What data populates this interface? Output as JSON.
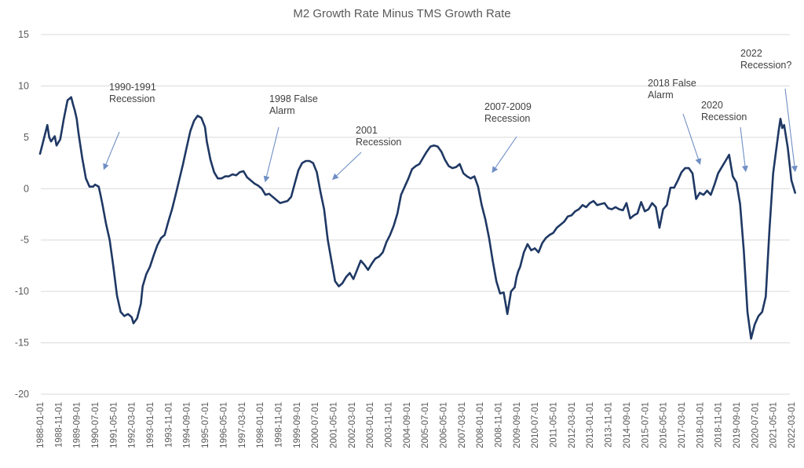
{
  "chart_data": {
    "type": "line",
    "title": "M2 Growth Rate Minus TMS Growth Rate",
    "xlabel": "",
    "ylabel": "",
    "ylim": [
      -20,
      15
    ],
    "yticks": [
      15,
      10,
      5,
      0,
      -5,
      -10,
      -15,
      -20
    ],
    "ytick_labels": [
      "15",
      "10",
      "5",
      "0",
      "-5",
      "-10",
      "-15",
      "-20"
    ],
    "grid": true,
    "legend": "none",
    "x_start": "1988-01",
    "x_end": "2022-05",
    "xtick_labels": [
      "1988-01-01",
      "1988-11-01",
      "1989-09-01",
      "1990-07-01",
      "1991-05-01",
      "1992-03-01",
      "1993-01-01",
      "1993-11-01",
      "1994-09-01",
      "1995-07-01",
      "1996-05-01",
      "1997-03-01",
      "1998-01-01",
      "1998-11-01",
      "1999-09-01",
      "2000-07-01",
      "2001-05-01",
      "2002-03-01",
      "2003-01-01",
      "2003-11-01",
      "2004-09-01",
      "2005-07-01",
      "2006-05-01",
      "2007-03-01",
      "2008-01-01",
      "2008-11-01",
      "2009-09-01",
      "2010-07-01",
      "2011-05-01",
      "2012-03-01",
      "2013-01-01",
      "2013-11-01",
      "2014-09-01",
      "2015-07-01",
      "2016-05-01",
      "2017-03-01",
      "2018-01-01",
      "2018-11-01",
      "2019-09-01",
      "2020-07-01",
      "2021-05-01",
      "2022-03-01"
    ],
    "series": [
      {
        "name": "M2 Growth Rate Minus TMS Growth Rate",
        "color": "#1f3864",
        "x": [
          "1988-01",
          "1988-03",
          "1988-05",
          "1988-06",
          "1988-07",
          "1988-09",
          "1988-10",
          "1988-12",
          "1989-02",
          "1989-04",
          "1989-06",
          "1989-07",
          "1989-08",
          "1989-09",
          "1989-10",
          "1989-12",
          "1990-02",
          "1990-04",
          "1990-06",
          "1990-07",
          "1990-09",
          "1990-10",
          "1990-11",
          "1991-01",
          "1991-03",
          "1991-05",
          "1991-07",
          "1991-09",
          "1991-11",
          "1992-01",
          "1992-03",
          "1992-04",
          "1992-06",
          "1992-08",
          "1992-09",
          "1992-11",
          "1993-01",
          "1993-03",
          "1993-05",
          "1993-07",
          "1993-09",
          "1993-11",
          "1994-01",
          "1994-03",
          "1994-05",
          "1994-07",
          "1994-09",
          "1994-11",
          "1995-01",
          "1995-03",
          "1995-05",
          "1995-07",
          "1995-08",
          "1995-10",
          "1995-12",
          "1996-02",
          "1996-04",
          "1996-06",
          "1996-08",
          "1996-10",
          "1996-12",
          "1997-02",
          "1997-04",
          "1997-06",
          "1997-08",
          "1997-10",
          "1997-12",
          "1998-02",
          "1998-04",
          "1998-06",
          "1998-08",
          "1998-10",
          "1998-12",
          "1999-02",
          "1999-04",
          "1999-06",
          "1999-08",
          "1999-10",
          "1999-12",
          "2000-02",
          "2000-04",
          "2000-06",
          "2000-08",
          "2000-10",
          "2000-12",
          "2001-02",
          "2001-04",
          "2001-06",
          "2001-08",
          "2001-10",
          "2001-12",
          "2002-02",
          "2002-04",
          "2002-06",
          "2002-08",
          "2002-10",
          "2002-12",
          "2003-02",
          "2003-04",
          "2003-06",
          "2003-08",
          "2003-10",
          "2003-12",
          "2004-02",
          "2004-04",
          "2004-06",
          "2004-08",
          "2004-10",
          "2004-12",
          "2005-02",
          "2005-04",
          "2005-06",
          "2005-08",
          "2005-10",
          "2005-12",
          "2006-02",
          "2006-04",
          "2006-06",
          "2006-08",
          "2006-10",
          "2006-12",
          "2007-02",
          "2007-04",
          "2007-06",
          "2007-08",
          "2007-10",
          "2007-12",
          "2008-02",
          "2008-04",
          "2008-06",
          "2008-08",
          "2008-10",
          "2008-12",
          "2009-02",
          "2009-04",
          "2009-06",
          "2009-08",
          "2009-09",
          "2009-10",
          "2009-11",
          "2010-01",
          "2010-03",
          "2010-05",
          "2010-07",
          "2010-09",
          "2010-11",
          "2011-01",
          "2011-03",
          "2011-05",
          "2011-07",
          "2011-09",
          "2011-11",
          "2012-01",
          "2012-03",
          "2012-05",
          "2012-07",
          "2012-09",
          "2012-11",
          "2013-01",
          "2013-03",
          "2013-05",
          "2013-07",
          "2013-09",
          "2013-11",
          "2014-01",
          "2014-03",
          "2014-05",
          "2014-07",
          "2014-09",
          "2014-11",
          "2015-01",
          "2015-03",
          "2015-05",
          "2015-07",
          "2015-09",
          "2015-11",
          "2016-01",
          "2016-03",
          "2016-05",
          "2016-07",
          "2016-09",
          "2016-11",
          "2017-01",
          "2017-03",
          "2017-05",
          "2017-07",
          "2017-09",
          "2017-11",
          "2018-01",
          "2018-03",
          "2018-05",
          "2018-07",
          "2018-09",
          "2018-11",
          "2019-01",
          "2019-03",
          "2019-05",
          "2019-07",
          "2019-09",
          "2019-11",
          "2020-01",
          "2020-03",
          "2020-05",
          "2020-07",
          "2020-09",
          "2020-11",
          "2021-01",
          "2021-03",
          "2021-05",
          "2021-07",
          "2021-08",
          "2021-09",
          "2021-10",
          "2021-11",
          "2022-01",
          "2022-03",
          "2022-05"
        ],
        "values": [
          3.4,
          4.8,
          6.2,
          5.0,
          4.6,
          5.1,
          4.2,
          4.8,
          6.8,
          8.6,
          8.9,
          8.2,
          7.6,
          6.8,
          5.4,
          3.0,
          1.0,
          0.2,
          0.2,
          0.4,
          0.2,
          -0.6,
          -1.5,
          -3.4,
          -5.0,
          -7.6,
          -10.4,
          -12.0,
          -12.4,
          -12.2,
          -12.5,
          -13.1,
          -12.6,
          -11.2,
          -9.5,
          -8.3,
          -7.6,
          -6.5,
          -5.5,
          -4.8,
          -4.5,
          -3.2,
          -2.0,
          -0.6,
          0.9,
          2.4,
          4.0,
          5.6,
          6.6,
          7.1,
          6.9,
          6.0,
          4.6,
          2.8,
          1.6,
          1.0,
          1.0,
          1.2,
          1.2,
          1.4,
          1.3,
          1.6,
          1.7,
          1.1,
          0.8,
          0.5,
          0.3,
          0.0,
          -0.6,
          -0.5,
          -0.8,
          -1.1,
          -1.4,
          -1.3,
          -1.2,
          -0.8,
          0.5,
          1.8,
          2.5,
          2.7,
          2.7,
          2.5,
          1.6,
          -0.3,
          -2.0,
          -5.0,
          -7.0,
          -9.0,
          -9.5,
          -9.2,
          -8.6,
          -8.2,
          -8.8,
          -7.9,
          -7.0,
          -7.4,
          -7.9,
          -7.3,
          -6.8,
          -6.6,
          -6.2,
          -5.2,
          -4.5,
          -3.6,
          -2.4,
          -0.6,
          0.2,
          1.0,
          1.9,
          2.2,
          2.4,
          3.0,
          3.6,
          4.1,
          4.2,
          4.1,
          3.6,
          2.8,
          2.2,
          2.0,
          2.1,
          2.4,
          1.5,
          1.2,
          1.0,
          1.2,
          0.2,
          -1.6,
          -3.0,
          -4.8,
          -7.0,
          -9.0,
          -10.2,
          -10.1,
          -12.2,
          -10.0,
          -9.6,
          -8.6,
          -8.0,
          -7.6,
          -6.2,
          -5.4,
          -6.0,
          -5.8,
          -6.2,
          -5.3,
          -4.8,
          -4.5,
          -4.3,
          -3.8,
          -3.5,
          -3.2,
          -2.7,
          -2.6,
          -2.2,
          -2.0,
          -1.6,
          -1.8,
          -1.4,
          -1.2,
          -1.6,
          -1.5,
          -1.4,
          -1.9,
          -2.0,
          -1.8,
          -2.0,
          -2.1,
          -1.4,
          -2.9,
          -2.6,
          -2.4,
          -1.3,
          -2.2,
          -2.0,
          -1.4,
          -1.8,
          -3.8,
          -2.0,
          -1.6,
          0.1,
          0.1,
          0.8,
          1.6,
          2.0,
          2.0,
          1.5,
          -1.0,
          -0.4,
          -0.6,
          -0.2,
          -0.6,
          0.4,
          1.5,
          2.1,
          2.7,
          3.3,
          1.2,
          0.6,
          -1.5,
          -6.0,
          -12.0,
          -14.6,
          -13.2,
          -12.4,
          -12.0,
          -10.5,
          -4.0,
          1.5,
          4.2,
          5.6,
          6.8,
          5.9,
          6.2,
          4.0,
          0.8,
          -0.4
        ]
      }
    ],
    "annotations": [
      {
        "text": [
          "1990-1991",
          "Recession"
        ],
        "arrow_to": [
          "1990-12",
          1.5
        ]
      },
      {
        "text": [
          "1998 False",
          "Alarm"
        ],
        "arrow_to": [
          "1998-04",
          0.3
        ]
      },
      {
        "text": [
          "2001",
          "Recession"
        ],
        "arrow_to": [
          "2001-05",
          0.5
        ]
      },
      {
        "text": [
          "2007-2009",
          "Recession"
        ],
        "arrow_to": [
          "2008-08",
          1.2
        ]
      },
      {
        "text": [
          "2018 False",
          "Alarm"
        ],
        "arrow_to": [
          "2018-01",
          2.0
        ]
      },
      {
        "text": [
          "2020",
          "Recession"
        ],
        "arrow_to": [
          "2020-02",
          1.3
        ]
      },
      {
        "text": [
          "2022",
          "Recession?"
        ],
        "arrow_to": [
          "2022-05",
          1.3
        ]
      }
    ]
  }
}
